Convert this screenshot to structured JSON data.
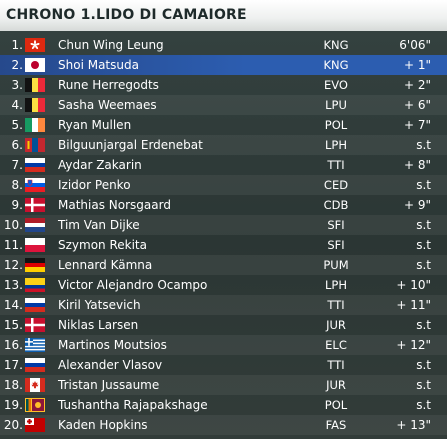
{
  "header": {
    "title": "CHRONO 1.LIDO DI CAMAIORE"
  },
  "riders": [
    {
      "pos": "1.",
      "flag": "hong-kong-flag",
      "name": "Chun Wing Leung",
      "team": "KNG",
      "gap": "6'06\""
    },
    {
      "pos": "2.",
      "flag": "japan-flag",
      "name": "Shoi Matsuda",
      "team": "KNG",
      "gap": "+ 1\""
    },
    {
      "pos": "3.",
      "flag": "belgium-flag",
      "name": "Rune Herregodts",
      "team": "EVO",
      "gap": "+ 2\""
    },
    {
      "pos": "4.",
      "flag": "belgium-flag",
      "name": "Sasha Weemaes",
      "team": "LPU",
      "gap": "+ 6\""
    },
    {
      "pos": "5.",
      "flag": "ireland-flag",
      "name": "Ryan Mullen",
      "team": "POL",
      "gap": "+ 7\""
    },
    {
      "pos": "6.",
      "flag": "mongolia-flag",
      "name": "Bilguunjargal Erdenebat",
      "team": "LPH",
      "gap": "s.t"
    },
    {
      "pos": "7.",
      "flag": "russia-flag",
      "name": "Aydar Zakarin",
      "team": "TTI",
      "gap": "+ 8\""
    },
    {
      "pos": "8.",
      "flag": "slovenia-flag",
      "name": "Izidor Penko",
      "team": "CED",
      "gap": "s.t"
    },
    {
      "pos": "9.",
      "flag": "denmark-flag",
      "name": "Mathias Norsgaard",
      "team": "CDB",
      "gap": "+ 9\""
    },
    {
      "pos": "10.",
      "flag": "netherlands-flag",
      "name": "Tim Van Dijke",
      "team": "SFI",
      "gap": "s.t"
    },
    {
      "pos": "11.",
      "flag": "poland-flag",
      "name": "Szymon Rekita",
      "team": "SFI",
      "gap": "s.t"
    },
    {
      "pos": "12.",
      "flag": "germany-flag",
      "name": "Lennard Kämna",
      "team": "PUM",
      "gap": "s.t"
    },
    {
      "pos": "13.",
      "flag": "colombia-flag",
      "name": "Victor Alejandro Ocampo",
      "team": "LPH",
      "gap": "+ 10\""
    },
    {
      "pos": "14.",
      "flag": "russia-flag",
      "name": "Kiril Yatsevich",
      "team": "TTI",
      "gap": "+ 11\""
    },
    {
      "pos": "15.",
      "flag": "denmark-flag",
      "name": "Niklas Larsen",
      "team": "JUR",
      "gap": "s.t"
    },
    {
      "pos": "16.",
      "flag": "greece-flag",
      "name": "Martinos Moutsios",
      "team": "ELC",
      "gap": "+ 12\""
    },
    {
      "pos": "17.",
      "flag": "russia-flag",
      "name": "Alexander Vlasov",
      "team": "TTI",
      "gap": "s.t"
    },
    {
      "pos": "18.",
      "flag": "canada-flag",
      "name": "Tristan Jussaume",
      "team": "JUR",
      "gap": "s.t"
    },
    {
      "pos": "19.",
      "flag": "sri-lanka-flag",
      "name": "Tushantha Rajapakshage",
      "team": "POL",
      "gap": "s.t"
    },
    {
      "pos": "20.",
      "flag": "tonga-flag",
      "name": "Kaden Hopkins",
      "team": "FAS",
      "gap": "+ 13\""
    }
  ],
  "highlighted_row": 1,
  "colors": {
    "header_bg": "#f2f3f2",
    "header_text": "#1e2a2a",
    "panel_bg": "#2f3a37",
    "highlight_blue": "#2c5db0",
    "text": "#ffffff"
  }
}
